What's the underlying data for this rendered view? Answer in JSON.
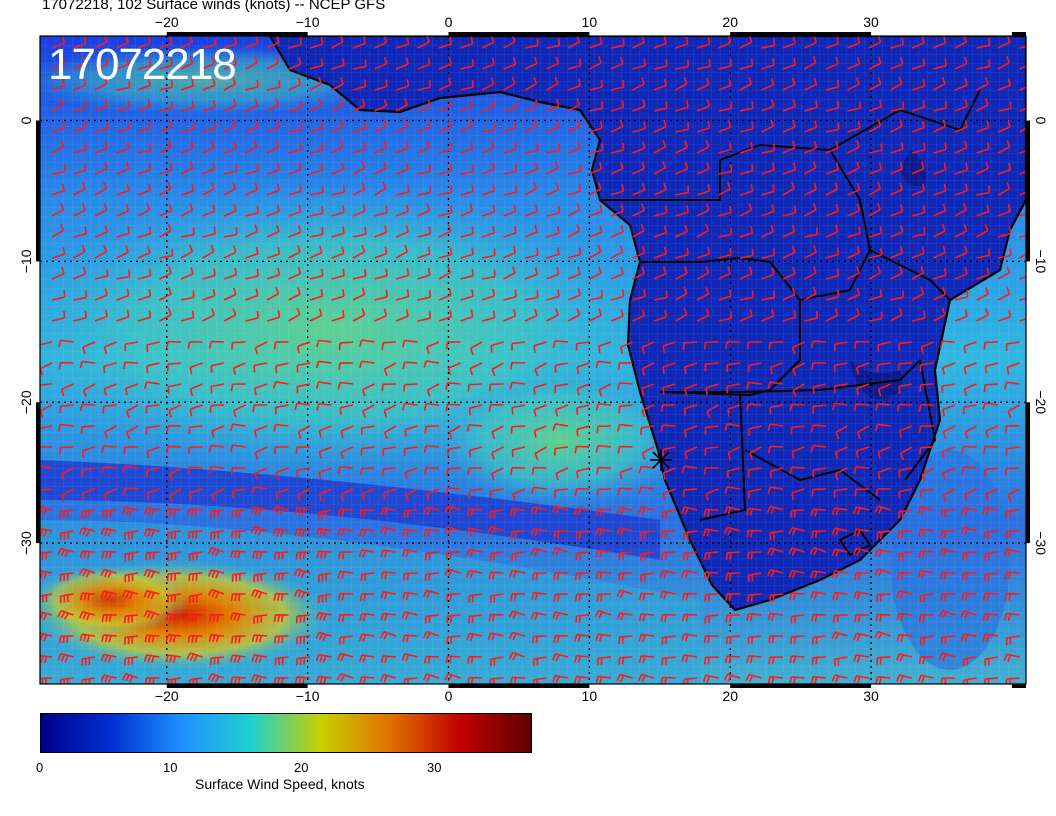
{
  "title": "17072218, 102 Surface winds (knots) -- NCEP GFS",
  "stamp": "17072218",
  "map": {
    "lon_labels": [
      "−20",
      "−10",
      "0",
      "10",
      "20",
      "30"
    ],
    "lat_labels": [
      "0",
      "−10",
      "−20",
      "−30"
    ],
    "lon_values": [
      -20,
      -10,
      0,
      10,
      20,
      30
    ],
    "lat_values": [
      0,
      -10,
      -20,
      -30
    ],
    "lon_range": [
      -29,
      41
    ],
    "lat_range": [
      6,
      -40
    ],
    "barb_color": "#ff1a1a",
    "coast_color": "#000000"
  },
  "colorbar": {
    "label": "Surface Wind Speed, knots",
    "ticks": [
      "0",
      "10",
      "20",
      "30"
    ],
    "tick_values": [
      0,
      10,
      20,
      30
    ],
    "range": [
      0,
      37
    ],
    "colors": [
      "#00008b",
      "#0030d0",
      "#1e90ff",
      "#20d0d0",
      "#c8d000",
      "#e07000",
      "#c00000",
      "#600000"
    ]
  }
}
